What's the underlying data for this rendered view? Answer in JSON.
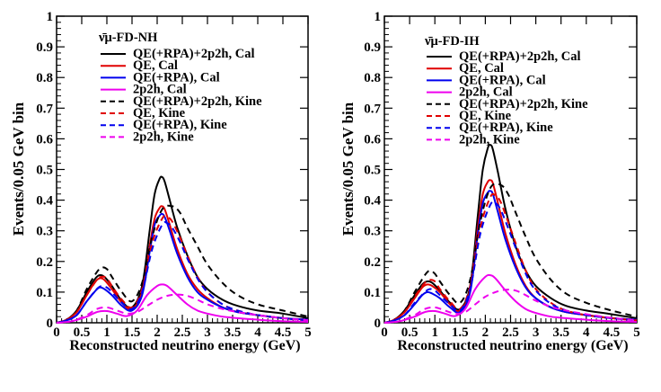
{
  "chart_data": [
    {
      "type": "line",
      "panel": "left",
      "legend_title": "ν̄μ-FD-NH",
      "xlabel": "Reconstructed neutrino energy (GeV)",
      "ylabel": "Events/0.05 GeV bin",
      "xlim": [
        0,
        5
      ],
      "ylim": [
        0,
        1
      ],
      "xticks": [
        "0",
        "0.5",
        "1",
        "1.5",
        "2",
        "2.5",
        "3",
        "3.5",
        "4",
        "4.5",
        "5"
      ],
      "yticks": [
        "0",
        "0.1",
        "0.2",
        "0.3",
        "0.4",
        "0.5",
        "0.6",
        "0.7",
        "0.8",
        "0.9",
        "1"
      ],
      "series": [
        {
          "name": "QE(+RPA)+2p2h, Cal",
          "color": "#000000",
          "dash": "solid",
          "x": [
            0,
            0.2,
            0.4,
            0.6,
            0.75,
            0.85,
            0.95,
            1.1,
            1.3,
            1.5,
            1.7,
            1.85,
            1.95,
            2.05,
            2.1,
            2.15,
            2.25,
            2.4,
            2.6,
            2.8,
            3.0,
            3.3,
            3.6,
            4.0,
            4.5,
            5.0
          ],
          "y": [
            0,
            0.01,
            0.04,
            0.1,
            0.14,
            0.155,
            0.15,
            0.12,
            0.07,
            0.05,
            0.12,
            0.3,
            0.42,
            0.47,
            0.475,
            0.46,
            0.4,
            0.31,
            0.22,
            0.15,
            0.11,
            0.075,
            0.055,
            0.04,
            0.03,
            0.015
          ]
        },
        {
          "name": "QE, Cal",
          "color": "#e00000",
          "dash": "solid",
          "x": [
            0,
            0.2,
            0.4,
            0.6,
            0.75,
            0.85,
            0.95,
            1.1,
            1.3,
            1.5,
            1.7,
            1.85,
            1.95,
            2.05,
            2.1,
            2.15,
            2.25,
            2.4,
            2.6,
            2.8,
            3.0,
            3.3,
            3.6,
            4.0,
            4.5,
            5.0
          ],
          "y": [
            0,
            0.01,
            0.035,
            0.09,
            0.13,
            0.145,
            0.14,
            0.11,
            0.065,
            0.045,
            0.1,
            0.25,
            0.34,
            0.375,
            0.38,
            0.37,
            0.32,
            0.24,
            0.16,
            0.11,
            0.08,
            0.05,
            0.035,
            0.025,
            0.015,
            0.01
          ]
        },
        {
          "name": "QE(+RPA), Cal",
          "color": "#0000ee",
          "dash": "solid",
          "x": [
            0,
            0.2,
            0.4,
            0.6,
            0.75,
            0.85,
            0.95,
            1.1,
            1.3,
            1.5,
            1.7,
            1.85,
            1.95,
            2.05,
            2.1,
            2.15,
            2.25,
            2.4,
            2.6,
            2.8,
            3.0,
            3.3,
            3.6,
            4.0,
            4.5,
            5.0
          ],
          "y": [
            0,
            0.008,
            0.025,
            0.07,
            0.1,
            0.115,
            0.11,
            0.09,
            0.055,
            0.04,
            0.09,
            0.23,
            0.32,
            0.35,
            0.355,
            0.345,
            0.3,
            0.225,
            0.15,
            0.1,
            0.075,
            0.05,
            0.035,
            0.025,
            0.015,
            0.01
          ]
        },
        {
          "name": "2p2h, Cal",
          "color": "#ee00ee",
          "dash": "solid",
          "x": [
            0,
            0.3,
            0.6,
            0.8,
            1.0,
            1.2,
            1.4,
            1.6,
            1.8,
            2.0,
            2.1,
            2.2,
            2.4,
            2.6,
            2.8,
            3.0,
            3.3,
            3.6,
            4.0,
            4.5,
            5.0
          ],
          "y": [
            0,
            0.005,
            0.02,
            0.035,
            0.038,
            0.03,
            0.022,
            0.04,
            0.09,
            0.12,
            0.125,
            0.12,
            0.09,
            0.06,
            0.04,
            0.03,
            0.02,
            0.015,
            0.01,
            0.005,
            0.003
          ]
        },
        {
          "name": "QE(+RPA)+2p2h, Kine",
          "color": "#000000",
          "dash": "dashed",
          "x": [
            0,
            0.2,
            0.4,
            0.6,
            0.8,
            0.9,
            1.0,
            1.1,
            1.3,
            1.5,
            1.7,
            1.9,
            2.1,
            2.3,
            2.45,
            2.6,
            2.8,
            3.0,
            3.3,
            3.6,
            4.0,
            4.5,
            5.0
          ],
          "y": [
            0,
            0.01,
            0.04,
            0.11,
            0.165,
            0.18,
            0.175,
            0.15,
            0.1,
            0.07,
            0.13,
            0.28,
            0.37,
            0.38,
            0.36,
            0.31,
            0.25,
            0.19,
            0.13,
            0.09,
            0.06,
            0.04,
            0.02
          ]
        },
        {
          "name": "QE, Kine",
          "color": "#e00000",
          "dash": "dashed",
          "x": [
            0,
            0.2,
            0.4,
            0.6,
            0.8,
            0.9,
            1.0,
            1.1,
            1.3,
            1.5,
            1.7,
            1.9,
            2.1,
            2.2,
            2.3,
            2.45,
            2.6,
            2.8,
            3.0,
            3.3,
            3.6,
            4.0,
            4.5,
            5.0
          ],
          "y": [
            0,
            0.01,
            0.035,
            0.09,
            0.14,
            0.15,
            0.145,
            0.12,
            0.075,
            0.05,
            0.11,
            0.26,
            0.34,
            0.345,
            0.33,
            0.28,
            0.22,
            0.15,
            0.1,
            0.06,
            0.04,
            0.025,
            0.015,
            0.008
          ]
        },
        {
          "name": "QE(+RPA), Kine",
          "color": "#0000ee",
          "dash": "dashed",
          "x": [
            0,
            0.2,
            0.4,
            0.6,
            0.8,
            0.9,
            1.0,
            1.1,
            1.3,
            1.5,
            1.7,
            1.9,
            2.1,
            2.2,
            2.3,
            2.45,
            2.6,
            2.8,
            3.0,
            3.3,
            3.6,
            4.0,
            4.5,
            5.0
          ],
          "y": [
            0,
            0.008,
            0.025,
            0.07,
            0.11,
            0.12,
            0.115,
            0.1,
            0.065,
            0.045,
            0.1,
            0.24,
            0.32,
            0.325,
            0.31,
            0.265,
            0.21,
            0.145,
            0.1,
            0.06,
            0.04,
            0.025,
            0.015,
            0.008
          ]
        },
        {
          "name": "2p2h, Kine",
          "color": "#ee00ee",
          "dash": "dashed",
          "x": [
            0,
            0.3,
            0.6,
            0.8,
            1.0,
            1.2,
            1.4,
            1.6,
            1.8,
            2.0,
            2.2,
            2.4,
            2.6,
            2.8,
            3.0,
            3.3,
            3.6,
            4.0,
            4.5,
            5.0
          ],
          "y": [
            0,
            0.005,
            0.025,
            0.045,
            0.05,
            0.04,
            0.03,
            0.035,
            0.055,
            0.075,
            0.088,
            0.092,
            0.088,
            0.075,
            0.06,
            0.045,
            0.035,
            0.025,
            0.015,
            0.008
          ]
        }
      ]
    },
    {
      "type": "line",
      "panel": "right",
      "legend_title": "ν̄μ-FD-IH",
      "xlabel": "Reconstructed neutrino energy (GeV)",
      "ylabel": "Events/0.05 GeV bin",
      "xlim": [
        0,
        5
      ],
      "ylim": [
        0,
        1
      ],
      "xticks": [
        "0",
        "0.5",
        "1",
        "1.5",
        "2",
        "2.5",
        "3",
        "3.5",
        "4",
        "4.5",
        "5"
      ],
      "yticks": [
        "0",
        "0.1",
        "0.2",
        "0.3",
        "0.4",
        "0.5",
        "0.6",
        "0.7",
        "0.8",
        "0.9",
        "1"
      ],
      "series": [
        {
          "name": "QE(+RPA)+2p2h, Cal",
          "color": "#000000",
          "dash": "solid",
          "x": [
            0,
            0.2,
            0.4,
            0.6,
            0.75,
            0.85,
            0.95,
            1.1,
            1.3,
            1.5,
            1.7,
            1.85,
            1.95,
            2.05,
            2.1,
            2.15,
            2.25,
            2.4,
            2.6,
            2.8,
            3.0,
            3.3,
            3.6,
            4.0,
            4.5,
            5.0
          ],
          "y": [
            0,
            0.01,
            0.04,
            0.09,
            0.125,
            0.135,
            0.13,
            0.105,
            0.065,
            0.045,
            0.12,
            0.35,
            0.5,
            0.57,
            0.58,
            0.565,
            0.49,
            0.37,
            0.25,
            0.17,
            0.12,
            0.08,
            0.055,
            0.04,
            0.028,
            0.015
          ]
        },
        {
          "name": "QE, Cal",
          "color": "#e00000",
          "dash": "solid",
          "x": [
            0,
            0.2,
            0.4,
            0.6,
            0.75,
            0.85,
            0.95,
            1.1,
            1.3,
            1.5,
            1.7,
            1.85,
            1.95,
            2.05,
            2.1,
            2.15,
            2.25,
            2.4,
            2.6,
            2.8,
            3.0,
            3.3,
            3.6,
            4.0,
            4.5,
            5.0
          ],
          "y": [
            0,
            0.01,
            0.035,
            0.08,
            0.115,
            0.125,
            0.12,
            0.1,
            0.06,
            0.04,
            0.11,
            0.31,
            0.42,
            0.46,
            0.465,
            0.455,
            0.39,
            0.29,
            0.19,
            0.12,
            0.08,
            0.05,
            0.035,
            0.025,
            0.015,
            0.01
          ]
        },
        {
          "name": "QE(+RPA), Cal",
          "color": "#0000ee",
          "dash": "solid",
          "x": [
            0,
            0.2,
            0.4,
            0.6,
            0.75,
            0.85,
            0.95,
            1.1,
            1.3,
            1.5,
            1.7,
            1.85,
            1.95,
            2.05,
            2.1,
            2.15,
            2.25,
            2.4,
            2.6,
            2.8,
            3.0,
            3.3,
            3.6,
            4.0,
            4.5,
            5.0
          ],
          "y": [
            0,
            0.008,
            0.025,
            0.06,
            0.09,
            0.1,
            0.095,
            0.08,
            0.05,
            0.035,
            0.1,
            0.29,
            0.39,
            0.425,
            0.43,
            0.42,
            0.36,
            0.27,
            0.18,
            0.115,
            0.08,
            0.05,
            0.035,
            0.025,
            0.015,
            0.01
          ]
        },
        {
          "name": "2p2h, Cal",
          "color": "#ee00ee",
          "dash": "solid",
          "x": [
            0,
            0.3,
            0.6,
            0.8,
            1.0,
            1.2,
            1.4,
            1.6,
            1.8,
            2.0,
            2.1,
            2.2,
            2.4,
            2.6,
            2.8,
            3.0,
            3.3,
            3.6,
            4.0,
            4.5,
            5.0
          ],
          "y": [
            0,
            0.005,
            0.02,
            0.035,
            0.038,
            0.03,
            0.022,
            0.045,
            0.11,
            0.15,
            0.155,
            0.145,
            0.105,
            0.07,
            0.045,
            0.032,
            0.02,
            0.015,
            0.01,
            0.005,
            0.003
          ]
        },
        {
          "name": "QE(+RPA)+2p2h, Kine",
          "color": "#000000",
          "dash": "dashed",
          "x": [
            0,
            0.2,
            0.4,
            0.6,
            0.8,
            0.9,
            1.0,
            1.1,
            1.3,
            1.5,
            1.7,
            1.9,
            2.1,
            2.3,
            2.45,
            2.6,
            2.8,
            3.0,
            3.3,
            3.6,
            4.0,
            4.5,
            5.0
          ],
          "y": [
            0,
            0.01,
            0.04,
            0.1,
            0.155,
            0.17,
            0.16,
            0.135,
            0.09,
            0.065,
            0.14,
            0.33,
            0.44,
            0.45,
            0.42,
            0.36,
            0.28,
            0.21,
            0.14,
            0.095,
            0.065,
            0.04,
            0.02
          ]
        },
        {
          "name": "QE, Kine",
          "color": "#e00000",
          "dash": "dashed",
          "x": [
            0,
            0.2,
            0.4,
            0.6,
            0.8,
            0.9,
            1.0,
            1.1,
            1.3,
            1.5,
            1.7,
            1.9,
            2.1,
            2.2,
            2.3,
            2.45,
            2.6,
            2.8,
            3.0,
            3.3,
            3.6,
            4.0,
            4.5,
            5.0
          ],
          "y": [
            0,
            0.01,
            0.035,
            0.085,
            0.13,
            0.14,
            0.135,
            0.11,
            0.07,
            0.045,
            0.12,
            0.31,
            0.41,
            0.415,
            0.395,
            0.33,
            0.26,
            0.17,
            0.11,
            0.065,
            0.04,
            0.025,
            0.015,
            0.008
          ]
        },
        {
          "name": "QE(+RPA), Kine",
          "color": "#0000ee",
          "dash": "dashed",
          "x": [
            0,
            0.2,
            0.4,
            0.6,
            0.8,
            0.9,
            1.0,
            1.1,
            1.3,
            1.5,
            1.7,
            1.9,
            2.1,
            2.2,
            2.3,
            2.45,
            2.6,
            2.8,
            3.0,
            3.3,
            3.6,
            4.0,
            4.5,
            5.0
          ],
          "y": [
            0,
            0.008,
            0.025,
            0.065,
            0.1,
            0.11,
            0.105,
            0.09,
            0.06,
            0.04,
            0.11,
            0.29,
            0.385,
            0.39,
            0.37,
            0.31,
            0.245,
            0.16,
            0.105,
            0.062,
            0.04,
            0.025,
            0.015,
            0.008
          ]
        },
        {
          "name": "2p2h, Kine",
          "color": "#ee00ee",
          "dash": "dashed",
          "x": [
            0,
            0.3,
            0.6,
            0.8,
            1.0,
            1.2,
            1.4,
            1.6,
            1.8,
            2.0,
            2.2,
            2.4,
            2.6,
            2.8,
            3.0,
            3.3,
            3.6,
            4.0,
            4.5,
            5.0
          ],
          "y": [
            0,
            0.005,
            0.025,
            0.045,
            0.05,
            0.04,
            0.03,
            0.035,
            0.06,
            0.085,
            0.1,
            0.108,
            0.105,
            0.09,
            0.072,
            0.052,
            0.04,
            0.028,
            0.016,
            0.008
          ]
        }
      ]
    }
  ]
}
